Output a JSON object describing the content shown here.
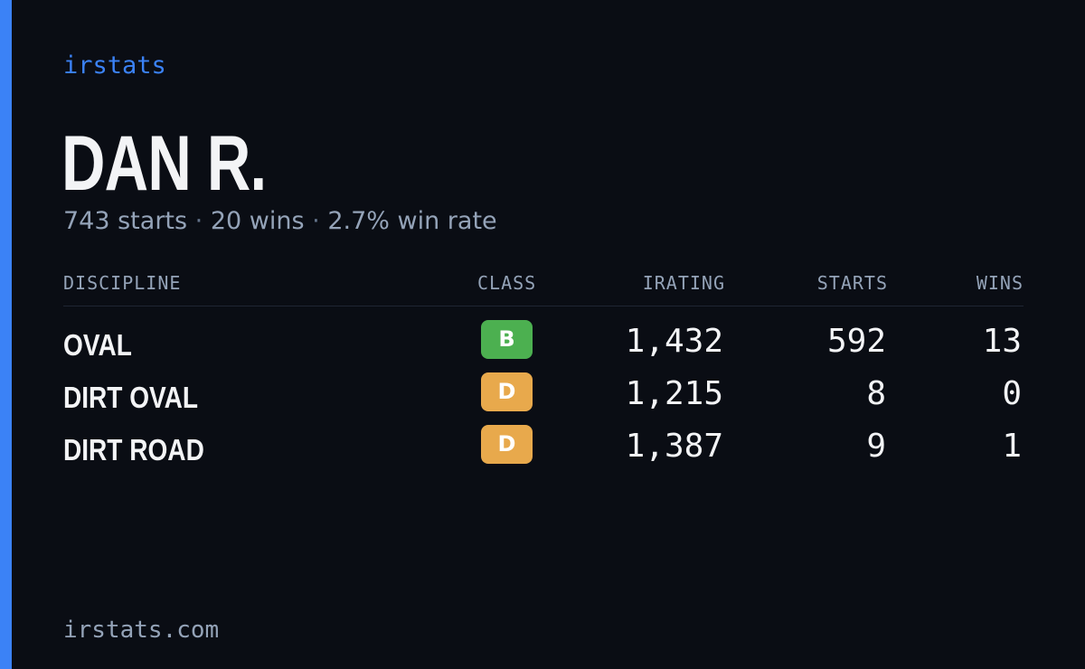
{
  "brand": "irstats",
  "player": {
    "name": "DAN R.",
    "starts_text": "743 starts",
    "wins_text": "20 wins",
    "win_rate_text": "2.7% win rate",
    "separator": "·"
  },
  "table": {
    "headers": {
      "discipline": "DISCIPLINE",
      "class": "CLASS",
      "irating": "IRATING",
      "starts": "STARTS",
      "wins": "WINS"
    },
    "rows": [
      {
        "discipline": "OVAL",
        "class": "B",
        "class_color": "#4cb050",
        "irating": "1,432",
        "starts": "592",
        "wins": "13"
      },
      {
        "discipline": "DIRT OVAL",
        "class": "D",
        "class_color": "#e8a94c",
        "irating": "1,215",
        "starts": "8",
        "wins": "0"
      },
      {
        "discipline": "DIRT ROAD",
        "class": "D",
        "class_color": "#e8a94c",
        "irating": "1,387",
        "starts": "9",
        "wins": "1"
      }
    ]
  },
  "footer": "irstats.com",
  "colors": {
    "accent": "#3b82f6",
    "background": "#0a0d14"
  }
}
